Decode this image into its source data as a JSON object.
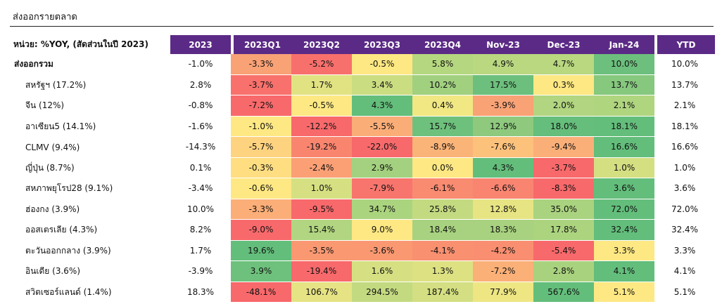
{
  "title": "ส่งออกรายตลาด",
  "unit_label": "หน่วย: %YOY, (สัดส่วนในปี 2023)",
  "columns": [
    "2023",
    "2023Q1",
    "2023Q2",
    "2023Q3",
    "2023Q4",
    "Nov-23",
    "Dec-23",
    "Jan-24",
    "YTD"
  ],
  "rows": [
    {
      "label": "ส่งออกรวม",
      "level": "main",
      "cells": [
        {
          "v": "-1.0%",
          "c": "#ffffff"
        },
        {
          "v": "-3.3%",
          "c": "#f9a276"
        },
        {
          "v": "-5.2%",
          "c": "#f8706c"
        },
        {
          "v": "-0.5%",
          "c": "#fee883"
        },
        {
          "v": "5.8%",
          "c": "#b5d77f"
        },
        {
          "v": "4.9%",
          "c": "#b9d880"
        },
        {
          "v": "4.7%",
          "c": "#b9d880"
        },
        {
          "v": "10.0%",
          "c": "#6cbf7c"
        },
        {
          "v": "10.0%",
          "c": "#ffffff"
        }
      ]
    },
    {
      "label": "สหรัฐฯ (17.2%)",
      "level": "sub",
      "cells": [
        {
          "v": "2.8%",
          "c": "#ffffff"
        },
        {
          "v": "-3.7%",
          "c": "#f8716c"
        },
        {
          "v": "1.7%",
          "c": "#e1e383"
        },
        {
          "v": "3.4%",
          "c": "#cbdd81"
        },
        {
          "v": "10.2%",
          "c": "#a1d07f"
        },
        {
          "v": "17.5%",
          "c": "#6cbf7c"
        },
        {
          "v": "0.3%",
          "c": "#fee883"
        },
        {
          "v": "13.7%",
          "c": "#86c87e"
        },
        {
          "v": "13.7%",
          "c": "#ffffff"
        }
      ]
    },
    {
      "label": "จีน (12%)",
      "level": "sub",
      "cells": [
        {
          "v": "-0.8%",
          "c": "#ffffff"
        },
        {
          "v": "-7.2%",
          "c": "#f8696b"
        },
        {
          "v": "-0.5%",
          "c": "#fee883"
        },
        {
          "v": "4.3%",
          "c": "#63be7b"
        },
        {
          "v": "0.4%",
          "c": "#f1e783"
        },
        {
          "v": "-3.9%",
          "c": "#f9a276"
        },
        {
          "v": "2.0%",
          "c": "#b1d580"
        },
        {
          "v": "2.1%",
          "c": "#afd57f"
        },
        {
          "v": "2.1%",
          "c": "#ffffff"
        }
      ]
    },
    {
      "label": "อาเซียน5 (14.1%)",
      "level": "sub",
      "cells": [
        {
          "v": "-1.6%",
          "c": "#ffffff"
        },
        {
          "v": "-1.0%",
          "c": "#fee883"
        },
        {
          "v": "-12.2%",
          "c": "#f8696b"
        },
        {
          "v": "-5.5%",
          "c": "#fbad78"
        },
        {
          "v": "15.7%",
          "c": "#6ec17c"
        },
        {
          "v": "12.9%",
          "c": "#8ec97e"
        },
        {
          "v": "18.0%",
          "c": "#65be7b"
        },
        {
          "v": "18.1%",
          "c": "#63be7b"
        },
        {
          "v": "18.1%",
          "c": "#ffffff"
        }
      ]
    },
    {
      "label": "CLMV (9.4%)",
      "level": "sub",
      "cells": [
        {
          "v": "-14.3%",
          "c": "#ffffff"
        },
        {
          "v": "-5.7%",
          "c": "#fed380"
        },
        {
          "v": "-19.2%",
          "c": "#f9856f"
        },
        {
          "v": "-22.0%",
          "c": "#f8696b"
        },
        {
          "v": "-8.9%",
          "c": "#fbb478"
        },
        {
          "v": "-7.6%",
          "c": "#fcc17b"
        },
        {
          "v": "-9.4%",
          "c": "#fbaf78"
        },
        {
          "v": "16.6%",
          "c": "#63be7b"
        },
        {
          "v": "16.6%",
          "c": "#ffffff"
        }
      ]
    },
    {
      "label": "ญี่ปุ่น (8.7%)",
      "level": "sub",
      "cells": [
        {
          "v": "0.1%",
          "c": "#ffffff"
        },
        {
          "v": "-0.3%",
          "c": "#fede81"
        },
        {
          "v": "-2.4%",
          "c": "#fba075"
        },
        {
          "v": "2.9%",
          "c": "#a3d17f"
        },
        {
          "v": "0.0%",
          "c": "#fee883"
        },
        {
          "v": "4.3%",
          "c": "#63be7b"
        },
        {
          "v": "-3.7%",
          "c": "#f8696b"
        },
        {
          "v": "1.0%",
          "c": "#d4df82"
        },
        {
          "v": "1.0%",
          "c": "#ffffff"
        }
      ]
    },
    {
      "label": "สหภาพยุโรป28 (9.1%)",
      "level": "sub",
      "cells": [
        {
          "v": "-3.4%",
          "c": "#ffffff"
        },
        {
          "v": "-0.6%",
          "c": "#fee883"
        },
        {
          "v": "1.0%",
          "c": "#d6e082"
        },
        {
          "v": "-7.9%",
          "c": "#f8756d"
        },
        {
          "v": "-6.1%",
          "c": "#f98b71"
        },
        {
          "v": "-6.6%",
          "c": "#f98571"
        },
        {
          "v": "-8.3%",
          "c": "#f8696b"
        },
        {
          "v": "3.6%",
          "c": "#63be7b"
        },
        {
          "v": "3.6%",
          "c": "#ffffff"
        }
      ]
    },
    {
      "label": "ฮ่องกง (3.9%)",
      "level": "sub",
      "cells": [
        {
          "v": "10.0%",
          "c": "#ffffff"
        },
        {
          "v": "-3.3%",
          "c": "#fbae77"
        },
        {
          "v": "-9.5%",
          "c": "#f8696b"
        },
        {
          "v": "34.7%",
          "c": "#abd47f"
        },
        {
          "v": "25.8%",
          "c": "#c4da81"
        },
        {
          "v": "12.8%",
          "c": "#e7e483"
        },
        {
          "v": "35.0%",
          "c": "#aad37f"
        },
        {
          "v": "72.0%",
          "c": "#63be7b"
        },
        {
          "v": "72.0%",
          "c": "#ffffff"
        }
      ]
    },
    {
      "label": "ออสเตรเลีย (4.3%)",
      "level": "sub",
      "cells": [
        {
          "v": "8.2%",
          "c": "#ffffff"
        },
        {
          "v": "-9.0%",
          "c": "#f8696b"
        },
        {
          "v": "15.4%",
          "c": "#b1d580"
        },
        {
          "v": "9.0%",
          "c": "#fee883"
        },
        {
          "v": "18.4%",
          "c": "#a8d27f"
        },
        {
          "v": "18.3%",
          "c": "#a8d27f"
        },
        {
          "v": "17.8%",
          "c": "#acd47f"
        },
        {
          "v": "32.4%",
          "c": "#63be7b"
        },
        {
          "v": "32.4%",
          "c": "#ffffff"
        }
      ]
    },
    {
      "label": "ตะวันออกกลาง (3.9%)",
      "level": "sub",
      "cells": [
        {
          "v": "1.7%",
          "c": "#ffffff"
        },
        {
          "v": "19.6%",
          "c": "#63be7b"
        },
        {
          "v": "-3.5%",
          "c": "#f99871"
        },
        {
          "v": "-3.6%",
          "c": "#f99871"
        },
        {
          "v": "-4.1%",
          "c": "#f99070"
        },
        {
          "v": "-4.2%",
          "c": "#f98f70"
        },
        {
          "v": "-5.4%",
          "c": "#f8696b"
        },
        {
          "v": "3.3%",
          "c": "#fee883"
        },
        {
          "v": "3.3%",
          "c": "#ffffff"
        }
      ]
    },
    {
      "label": "อินเดีย (3.6%)",
      "level": "sub",
      "cells": [
        {
          "v": "-3.9%",
          "c": "#ffffff"
        },
        {
          "v": "3.9%",
          "c": "#6ec17c"
        },
        {
          "v": "-19.4%",
          "c": "#f8696b"
        },
        {
          "v": "1.6%",
          "c": "#d6e082"
        },
        {
          "v": "1.3%",
          "c": "#dde182"
        },
        {
          "v": "-7.2%",
          "c": "#fbb077"
        },
        {
          "v": "2.8%",
          "c": "#a9d27f"
        },
        {
          "v": "4.1%",
          "c": "#63be7b"
        },
        {
          "v": "4.1%",
          "c": "#ffffff"
        }
      ]
    },
    {
      "label": "สวิตเซอร์แลนด์ (1.4%)",
      "level": "sub",
      "cells": [
        {
          "v": "18.3%",
          "c": "#ffffff"
        },
        {
          "v": "-48.1%",
          "c": "#f8696b"
        },
        {
          "v": "106.7%",
          "c": "#e5e383"
        },
        {
          "v": "294.5%",
          "c": "#c3da81"
        },
        {
          "v": "187.4%",
          "c": "#d3df82"
        },
        {
          "v": "77.9%",
          "c": "#eee683"
        },
        {
          "v": "567.6%",
          "c": "#63be7b"
        },
        {
          "v": "5.1%",
          "c": "#fee883"
        },
        {
          "v": "5.1%",
          "c": "#ffffff"
        }
      ]
    }
  ]
}
